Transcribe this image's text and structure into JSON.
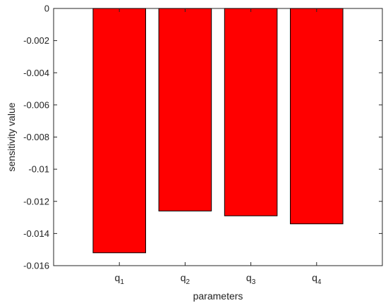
{
  "chart_data": {
    "type": "bar",
    "categories": [
      "q1",
      "q2",
      "q3",
      "q4"
    ],
    "category_labels": [
      {
        "base": "q",
        "sub": "1"
      },
      {
        "base": "q",
        "sub": "2"
      },
      {
        "base": "q",
        "sub": "3"
      },
      {
        "base": "q",
        "sub": "4"
      }
    ],
    "values": [
      -0.0152,
      -0.0126,
      -0.0129,
      -0.0134
    ],
    "title": "",
    "xlabel": "parameters",
    "ylabel": "sensitivity value",
    "ylim": [
      -0.016,
      0
    ],
    "yticks": [
      0,
      -0.002,
      -0.004,
      -0.006,
      -0.008,
      -0.01,
      -0.012,
      -0.014,
      -0.016
    ],
    "ytick_labels": [
      "0",
      "-0.002",
      "-0.004",
      "-0.006",
      "-0.008",
      "-0.01",
      "-0.012",
      "-0.014",
      "-0.016"
    ],
    "grid": false,
    "bar_color": "#ff0000",
    "bar_edge_color": "#000000",
    "axis_color": "#262626"
  }
}
